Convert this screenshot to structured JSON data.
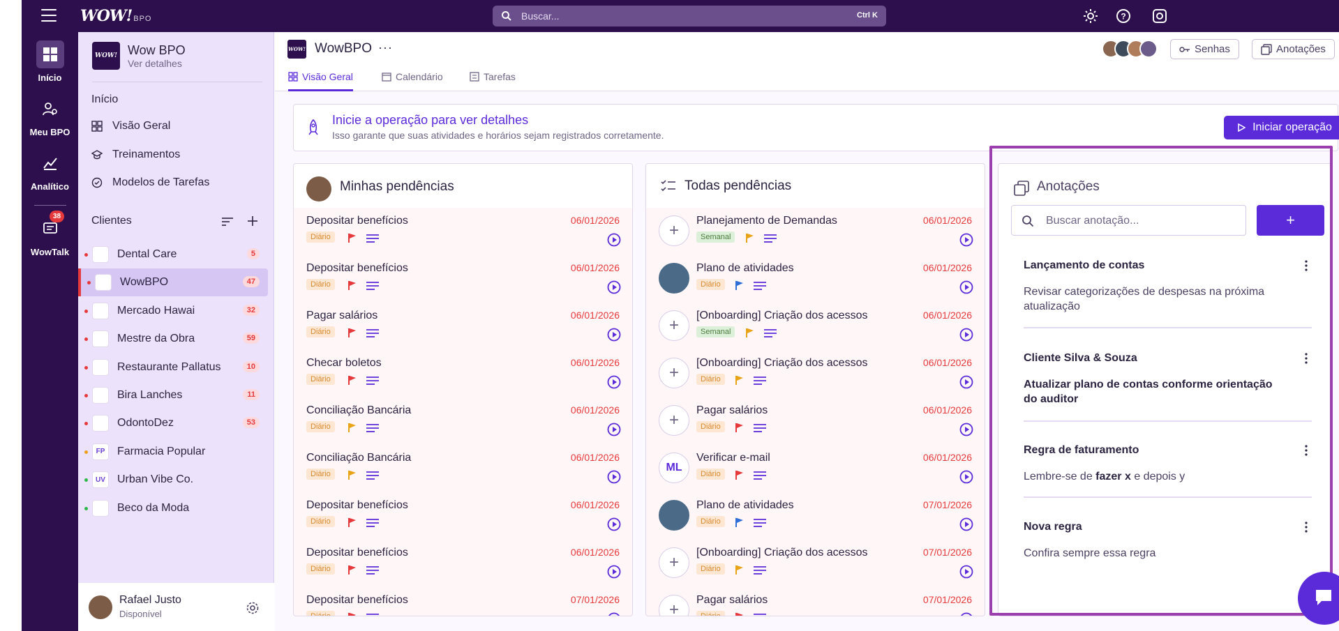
{
  "app": {
    "logo": "WOW!",
    "logo_sub": "BPO",
    "search_placeholder": "Buscar...",
    "search_shortcut": "Ctrl K"
  },
  "rail": {
    "items": [
      {
        "label": "Início",
        "icon": "grid-icon"
      },
      {
        "label": "Meu BPO",
        "icon": "user-gear-icon"
      },
      {
        "label": "Analítico",
        "icon": "chart-icon"
      },
      {
        "label": "WowTalk",
        "icon": "chat-icon",
        "badge": "38"
      }
    ]
  },
  "sidebar": {
    "org_name": "Wow BPO",
    "org_link": "Ver detalhes",
    "org_logo": "WOW!",
    "section_inicio": "Início",
    "nav": [
      "Visão Geral",
      "Treinamentos",
      "Modelos de Tarefas"
    ],
    "clients_title": "Clientes",
    "clients": [
      {
        "name": "Dental Care",
        "count": "5",
        "dot": "#e5393b",
        "initials": ""
      },
      {
        "name": "WowBPO",
        "count": "47",
        "dot": "#e5393b",
        "initials": ""
      },
      {
        "name": "Mercado Hawai",
        "count": "32",
        "dot": "#e5393b",
        "initials": ""
      },
      {
        "name": "Mestre da Obra",
        "count": "59",
        "dot": "#e5393b",
        "initials": ""
      },
      {
        "name": "Restaurante Pallatus",
        "count": "10",
        "dot": "#e5393b",
        "initials": ""
      },
      {
        "name": "Bira Lanches",
        "count": "11",
        "dot": "#e5393b",
        "initials": ""
      },
      {
        "name": "OdontoDez",
        "count": "53",
        "dot": "#e5393b",
        "initials": ""
      },
      {
        "name": "Farmacia Popular",
        "count": "",
        "dot": "#f0a020",
        "initials": "FP"
      },
      {
        "name": "Urban Vibe Co.",
        "count": "",
        "dot": "#2eb84b",
        "initials": "UV"
      },
      {
        "name": "Beco da Moda",
        "count": "",
        "dot": "#2eb84b",
        "initials": ""
      }
    ],
    "user_name": "Rafael Justo",
    "user_status": "Disponível"
  },
  "header": {
    "title": "WowBPO",
    "more": "···",
    "logo": "WOW!",
    "tabs": [
      "Visão Geral",
      "Calendário",
      "Tarefas"
    ],
    "btn_senhas": "Senhas",
    "btn_anotacoes": "Anotações"
  },
  "banner": {
    "title": "Inicie a operação para ver detalhes",
    "subtitle": "Isso garante que suas atividades e horários sejam registrados corretamente.",
    "button": "Iniciar operação"
  },
  "my_tasks": {
    "title": "Minhas pendências",
    "items": [
      {
        "name": "Depositar benefícios",
        "date": "06/01/2026",
        "tag": "Diário",
        "flag": "#e5393b"
      },
      {
        "name": "Depositar benefícios",
        "date": "06/01/2026",
        "tag": "Diário",
        "flag": "#e5393b"
      },
      {
        "name": "Pagar salários",
        "date": "06/01/2026",
        "tag": "Diário",
        "flag": "#e5393b"
      },
      {
        "name": "Checar boletos",
        "date": "06/01/2026",
        "tag": "Diário",
        "flag": "#e5393b"
      },
      {
        "name": "Conciliação Bancária",
        "date": "06/01/2026",
        "tag": "Diário",
        "flag": "#e8a317"
      },
      {
        "name": "Conciliação Bancária",
        "date": "06/01/2026",
        "tag": "Diário",
        "flag": "#e8a317"
      },
      {
        "name": "Depositar benefícios",
        "date": "06/01/2026",
        "tag": "Diário",
        "flag": "#e5393b"
      },
      {
        "name": "Depositar benefícios",
        "date": "06/01/2026",
        "tag": "Diário",
        "flag": "#e5393b"
      },
      {
        "name": "Depositar benefícios",
        "date": "07/01/2026",
        "tag": "Diário",
        "flag": "#e5393b"
      }
    ]
  },
  "all_tasks": {
    "title": "Todas pendências",
    "items": [
      {
        "name": "Planejamento de Demandas",
        "date": "06/01/2026",
        "tag": "Semanal",
        "tagtype": "s",
        "flag": "#e8a317",
        "avatar": "plus"
      },
      {
        "name": "Plano de atividades",
        "date": "06/01/2026",
        "tag": "Diário",
        "tagtype": "d",
        "flag": "#2d6fd6",
        "avatar": "photo"
      },
      {
        "name": "[Onboarding] Criação dos acessos",
        "date": "06/01/2026",
        "tag": "Semanal",
        "tagtype": "s",
        "flag": "#e8a317",
        "avatar": "plus"
      },
      {
        "name": "[Onboarding] Criação dos acessos",
        "date": "06/01/2026",
        "tag": "Diário",
        "tagtype": "d",
        "flag": "#e8a317",
        "avatar": "plus"
      },
      {
        "name": "Pagar salários",
        "date": "06/01/2026",
        "tag": "Diário",
        "tagtype": "d",
        "flag": "#e5393b",
        "avatar": "plus"
      },
      {
        "name": "Verificar e-mail",
        "date": "06/01/2026",
        "tag": "Diário",
        "tagtype": "d",
        "flag": "#e5393b",
        "avatar": "ML"
      },
      {
        "name": "Plano de atividades",
        "date": "07/01/2026",
        "tag": "Diário",
        "tagtype": "d",
        "flag": "#2d6fd6",
        "avatar": "photo"
      },
      {
        "name": "[Onboarding] Criação dos acessos",
        "date": "07/01/2026",
        "tag": "Diário",
        "tagtype": "d",
        "flag": "#e8a317",
        "avatar": "plus"
      },
      {
        "name": "Pagar salários",
        "date": "07/01/2026",
        "tag": "Diário",
        "tagtype": "d",
        "flag": "#e5393b",
        "avatar": "plus"
      }
    ]
  },
  "notes": {
    "title": "Anotações",
    "search_placeholder": "Buscar anotação...",
    "add": "+",
    "items": [
      {
        "title": "Lançamento de contas",
        "body": "Revisar categorizações de despesas na próxima atualização",
        "bold": false
      },
      {
        "title": "Cliente Silva & Souza",
        "body": "Atualizar plano de contas conforme orientação do auditor",
        "bold": true
      },
      {
        "title": "Regra de faturamento",
        "body_pre": "Lembre-se de ",
        "body_bold": "fazer x",
        "body_post": " e depois y",
        "bold": false
      },
      {
        "title": "Nova regra",
        "body": "Confira sempre essa regra",
        "bold": false
      }
    ]
  },
  "colors": {
    "brand": "#2d0f4e",
    "accent": "#5b2ad9",
    "danger": "#e5393b"
  }
}
